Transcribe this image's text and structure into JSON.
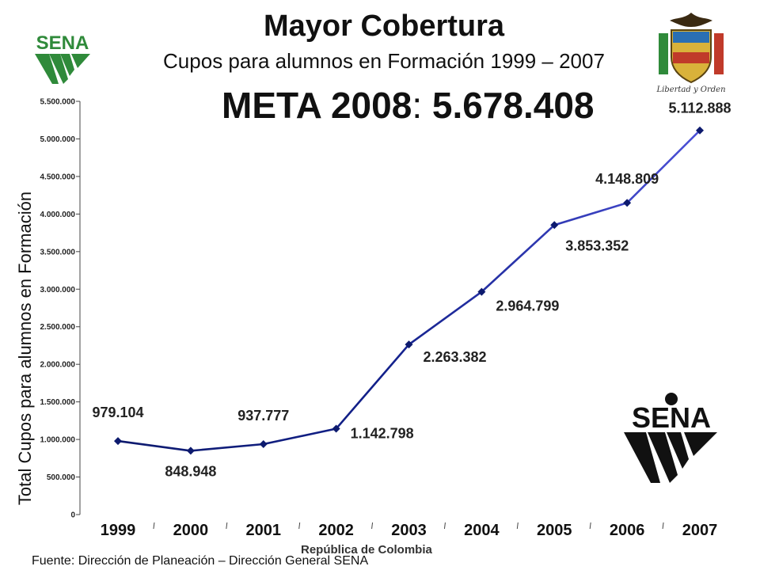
{
  "header": {
    "title": "Mayor Cobertura",
    "subtitle": "Cupos para alumnos en Formación 1999 – 2007",
    "meta_label": "META 2008",
    "meta_sep": ":",
    "meta_value": "5.678.408"
  },
  "logos": {
    "sena_text": "SENA",
    "coat_motto": "Libertad y Orden",
    "watermark": "República de Colombia"
  },
  "footer": {
    "source": "Fuente: Dirección de Planeación – Dirección General SENA"
  },
  "chart_data": {
    "type": "line",
    "ylabel": "Total Cupos para alumnos en Formación",
    "categories": [
      "1999",
      "2000",
      "2001",
      "2002",
      "2003",
      "2004",
      "2005",
      "2006",
      "2007"
    ],
    "values": [
      979104,
      848948,
      937777,
      1142798,
      2263382,
      2964799,
      3853352,
      4148809,
      5112888
    ],
    "data_labels": [
      "979.104",
      "848.948",
      "937.777",
      "1.142.798",
      "2.263.382",
      "2.964.799",
      "3.853.352",
      "4.148.809",
      "5.112.888"
    ],
    "ylim": [
      0,
      5500000
    ],
    "yticks": [
      0,
      500000,
      1000000,
      1500000,
      2000000,
      2500000,
      3000000,
      3500000,
      4000000,
      4500000,
      5000000,
      5500000
    ],
    "ytick_labels": [
      "0",
      "500.000",
      "1.000.000",
      "1.500.000",
      "2.000.000",
      "2.500.000",
      "3.000.000",
      "3.500.000",
      "4.000.000",
      "4.500.000",
      "5.000.000",
      "5.500.000"
    ],
    "grid": false,
    "colors": {
      "line_start": "#0d1a6e",
      "line_end": "#4a4fd6",
      "marker": "#0d1a6e",
      "axis": "#444444"
    }
  }
}
